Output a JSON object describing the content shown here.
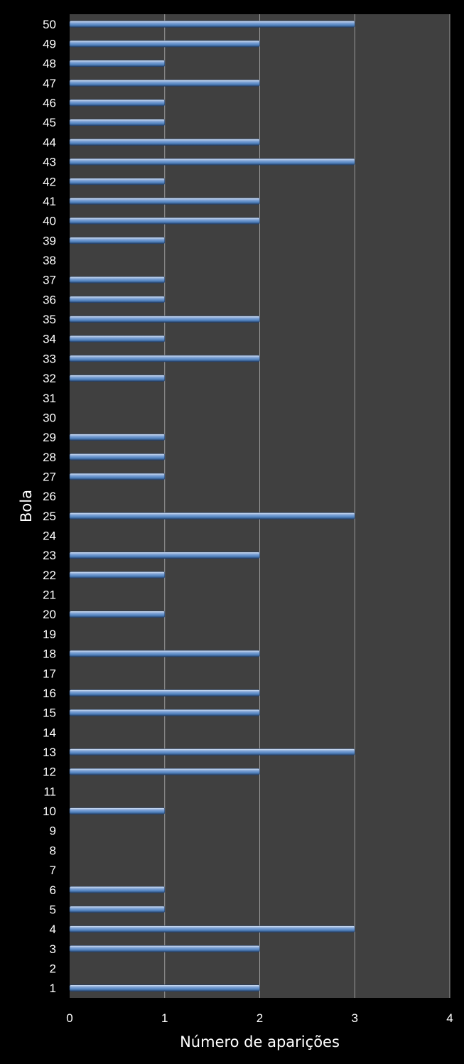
{
  "chart_data": {
    "type": "bar",
    "orientation": "horizontal",
    "xlabel": "Número de aparições",
    "ylabel": "Bola",
    "xlim": [
      0,
      4
    ],
    "x_ticks": [
      "0",
      "1",
      "2",
      "3",
      "4"
    ],
    "grid": "vertical",
    "legend": "none",
    "categories": [
      "1",
      "2",
      "3",
      "4",
      "5",
      "6",
      "7",
      "8",
      "9",
      "10",
      "11",
      "12",
      "13",
      "14",
      "15",
      "16",
      "17",
      "18",
      "19",
      "20",
      "21",
      "22",
      "23",
      "24",
      "25",
      "26",
      "27",
      "28",
      "29",
      "30",
      "31",
      "32",
      "33",
      "34",
      "35",
      "36",
      "37",
      "38",
      "39",
      "40",
      "41",
      "42",
      "43",
      "44",
      "45",
      "46",
      "47",
      "48",
      "49",
      "50"
    ],
    "values": [
      2,
      0,
      2,
      3,
      1,
      1,
      0,
      0,
      0,
      1,
      0,
      2,
      3,
      0,
      2,
      2,
      0,
      2,
      0,
      1,
      0,
      1,
      2,
      0,
      3,
      0,
      1,
      1,
      1,
      0,
      0,
      1,
      2,
      1,
      2,
      1,
      1,
      0,
      1,
      2,
      2,
      1,
      3,
      2,
      1,
      1,
      2,
      1,
      2,
      3
    ],
    "colors": {
      "page_background": "#000000",
      "plot_background": "#404040",
      "gridline": "#9a9a9a",
      "bar_fill": "#4f81bd",
      "bar_highlight": "#a8c4e8",
      "bar_shadow": "#243f66",
      "text": "#ffffff"
    }
  }
}
